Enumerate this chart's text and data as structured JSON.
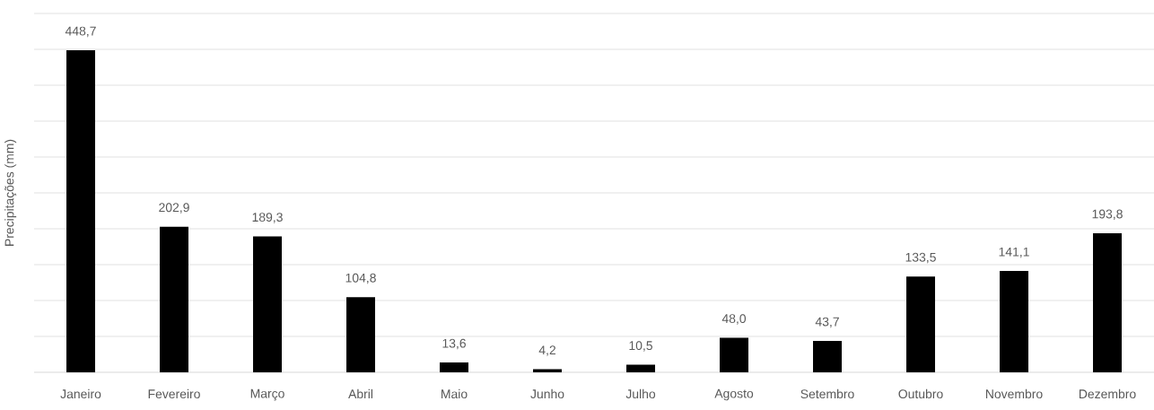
{
  "chart_data": {
    "type": "bar",
    "ylabel": "Precipitações (mm)",
    "categories": [
      "Janeiro",
      "Fevereiro",
      "Março",
      "Abril",
      "Maio",
      "Junho",
      "Julho",
      "Agosto",
      "Setembro",
      "Outubro",
      "Novembro",
      "Dezembro"
    ],
    "values": [
      448.7,
      202.9,
      189.3,
      104.8,
      13.6,
      4.2,
      10.5,
      48.0,
      43.7,
      133.5,
      141.1,
      193.8
    ],
    "value_labels": [
      "448,7",
      "202,9",
      "189,3",
      "104,8",
      "13,6",
      "4,2",
      "10,5",
      "48,0",
      "43,7",
      "133,5",
      "141,1",
      "193,8"
    ],
    "color": "#000000",
    "ylim": [
      0,
      500
    ],
    "yticks": [
      {
        "value": 0,
        "label": null
      },
      {
        "value": 50,
        "label": null
      },
      {
        "value": 100,
        "label": null
      },
      {
        "value": 150,
        "label": null
      },
      {
        "value": 200,
        "label": null
      },
      {
        "value": 250,
        "label": null
      },
      {
        "value": 300,
        "label": null
      },
      {
        "value": 350,
        "label": null
      },
      {
        "value": 400,
        "label": null
      },
      {
        "value": 450,
        "label": null
      },
      {
        "value": 500,
        "label": null
      }
    ],
    "grid": "y",
    "tick_labels": "x"
  }
}
